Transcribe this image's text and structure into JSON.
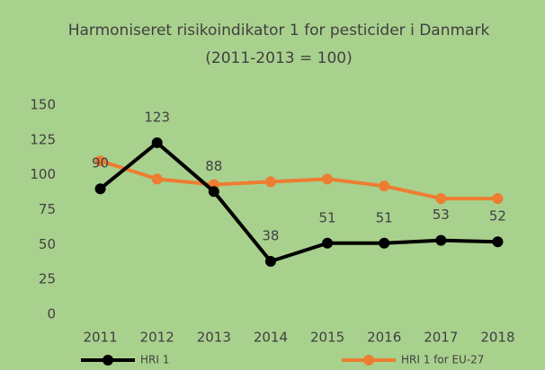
{
  "chart_data": {
    "type": "line",
    "title": "Harmoniseret risikoindikator 1 for pesticider i Danmark",
    "subtitle": "(2011-2013 = 100)",
    "categories": [
      "2011",
      "2012",
      "2013",
      "2014",
      "2015",
      "2016",
      "2017",
      "2018"
    ],
    "series": [
      {
        "name": "HRI 1",
        "color": "#000000",
        "values": [
          90,
          123,
          88,
          38,
          51,
          51,
          53,
          52
        ],
        "data_labels": true
      },
      {
        "name": "HRI 1 for EU-27",
        "color": "#ed7d31",
        "values": [
          110,
          97,
          93,
          95,
          97,
          92,
          83,
          83
        ],
        "data_labels": false
      }
    ],
    "ylim": [
      0,
      150
    ],
    "yticks": [
      0,
      25,
      50,
      75,
      100,
      125,
      150
    ],
    "grid": false,
    "legend": "bottom"
  }
}
